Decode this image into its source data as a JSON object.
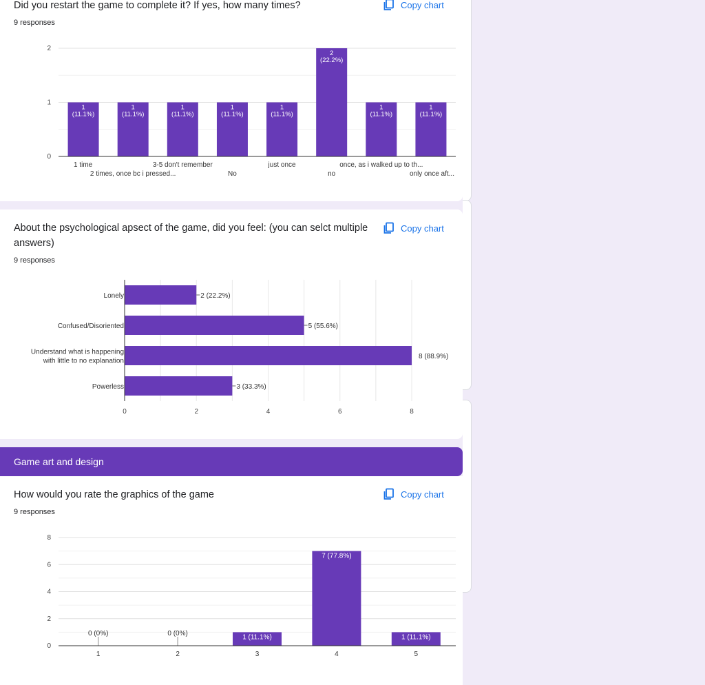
{
  "ui": {
    "copy_chart_label": "Copy chart",
    "accent_color": "#673ab7",
    "link_color": "#1a73e8",
    "icon": "copy-icon"
  },
  "questions": [
    {
      "title": "Did you restart the game to complete it? If yes, how many times?",
      "responses": "9 responses"
    },
    {
      "title": "About the psychological apsect of the game, did you feel: (you can selct multiple answers)",
      "responses": "9 responses"
    },
    {
      "title": "How would you rate the graphics of the game",
      "responses": "9 responses"
    }
  ],
  "section": {
    "title": "Game art and design"
  },
  "chart_data": [
    {
      "type": "bar",
      "orientation": "vertical",
      "categories": [
        "1 time",
        "2 times, once bc i pressed...",
        "3-5 don't remember",
        "No",
        "just once",
        "no",
        "once, as i walked up to th...",
        "only once aft..."
      ],
      "values": [
        1,
        1,
        1,
        1,
        1,
        2,
        1,
        1
      ],
      "data_labels": [
        "1",
        "(11.1%)",
        "1",
        "(11.1%)",
        "1",
        "(11.1%)",
        "1",
        "(11.1%)",
        "1",
        "(11.1%)",
        "2",
        "(22.2%)",
        "1",
        "(11.1%)",
        "1",
        "(11.1%)"
      ],
      "yticks": [
        "0",
        "1",
        "2"
      ],
      "ylim": [
        0,
        2
      ],
      "grid": true,
      "color": "#673ab7"
    },
    {
      "type": "bar",
      "orientation": "horizontal",
      "categories": [
        "Lonely",
        "Confused/Disoriented",
        "Understand what is happening with little to no explanation",
        "Powerless"
      ],
      "category_lines": [
        [
          "Lonely"
        ],
        [
          "Confused/Disoriented"
        ],
        [
          "Understand what is happening",
          "with little to no explanation"
        ],
        [
          "Powerless"
        ]
      ],
      "values": [
        2,
        5,
        8,
        3
      ],
      "data_labels": [
        "2 (22.2%)",
        "5 (55.6%)",
        "8 (88.9%)",
        "3 (33.3%)"
      ],
      "xticks": [
        "0",
        "2",
        "4",
        "6",
        "8"
      ],
      "xlim": [
        0,
        8
      ],
      "grid": true,
      "color": "#673ab7"
    },
    {
      "type": "bar",
      "orientation": "vertical",
      "categories": [
        "1",
        "2",
        "3",
        "4",
        "5"
      ],
      "values": [
        0,
        0,
        1,
        7,
        1
      ],
      "data_labels": [
        "0 (0%)",
        "0 (0%)",
        "1 (11.1%)",
        "7 (77.8%)",
        "1 (11.1%)"
      ],
      "yticks": [
        "0",
        "2",
        "4",
        "6",
        "8"
      ],
      "ylim": [
        0,
        8
      ],
      "grid": true,
      "color": "#673ab7"
    }
  ]
}
